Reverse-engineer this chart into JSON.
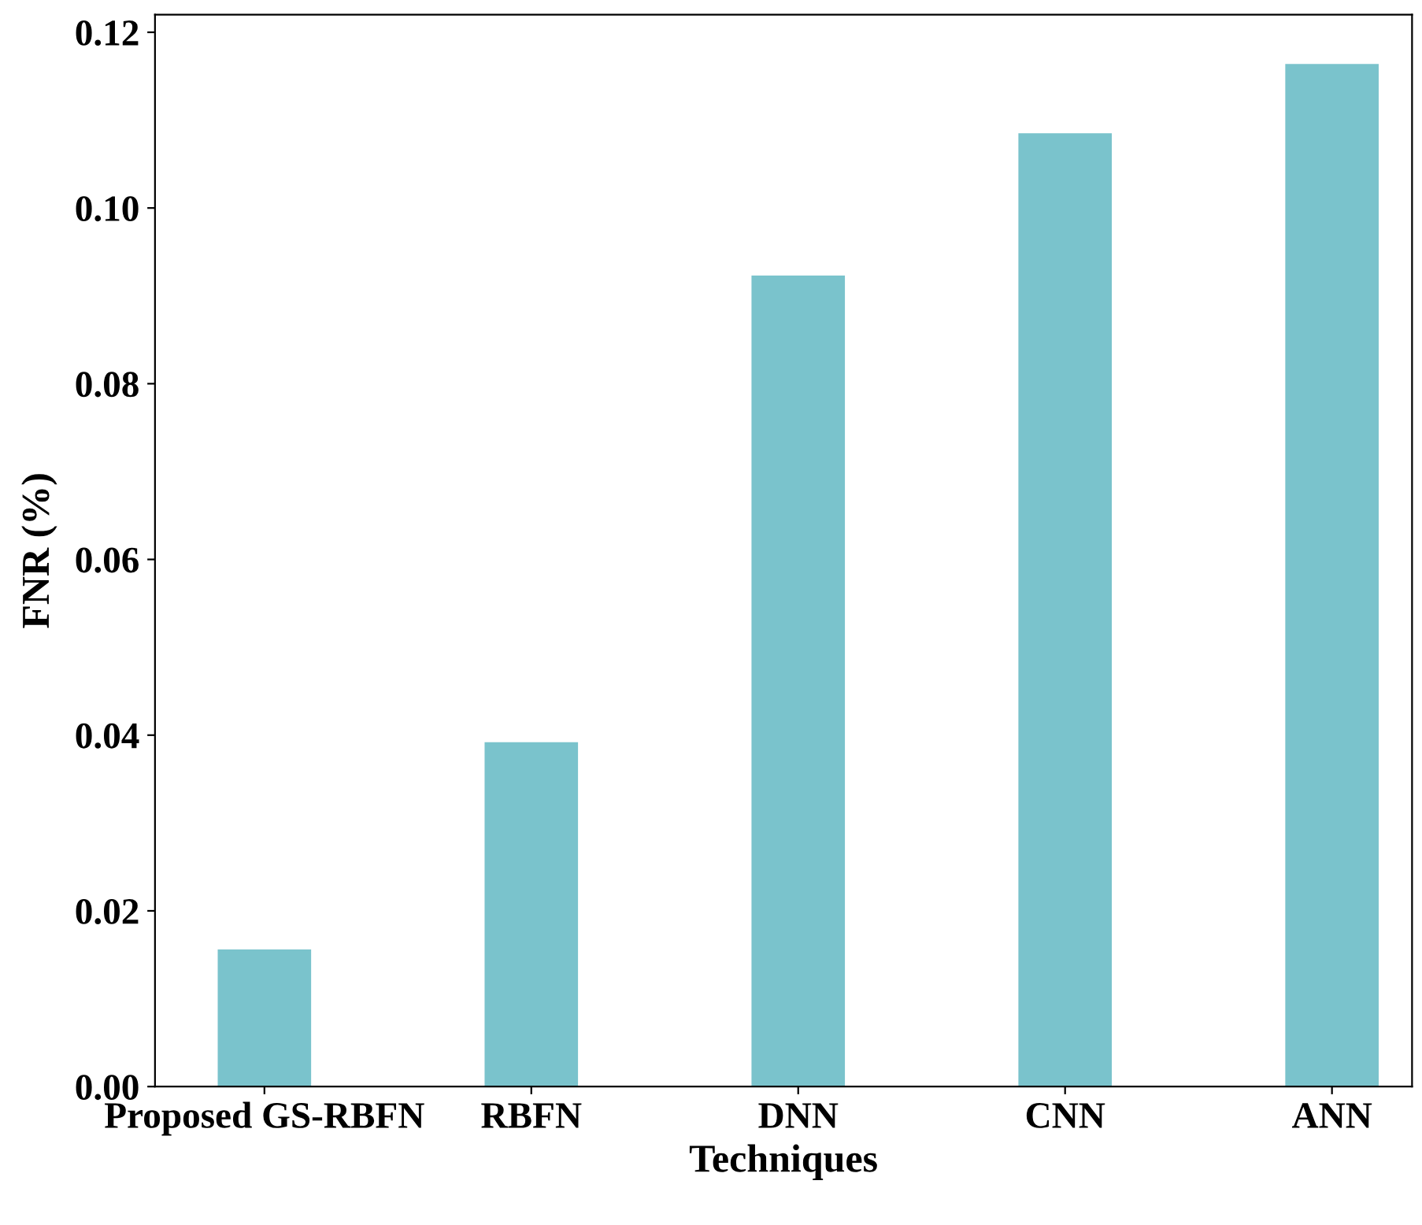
{
  "chart_data": {
    "type": "bar",
    "xlabel": "Techniques",
    "ylabel": "FNR (%)",
    "categories": [
      "Proposed GS-RBFN",
      "RBFN",
      "DNN",
      "CNN",
      "ANN"
    ],
    "values": [
      0.0156,
      0.0392,
      0.0923,
      0.1085,
      0.1164
    ],
    "color": "#7ac3cc",
    "ylim": [
      0,
      0.122
    ],
    "yticks": [
      {
        "value": 0,
        "label": "0.00"
      },
      {
        "value": 0.02,
        "label": "0.02"
      },
      {
        "value": 0.04,
        "label": "0.04"
      },
      {
        "value": 0.06,
        "label": "0.06"
      },
      {
        "value": 0.08,
        "label": "0.08"
      },
      {
        "value": 0.1,
        "label": "0.10"
      },
      {
        "value": 0.12,
        "label": "0.12"
      }
    ],
    "grid": false
  }
}
